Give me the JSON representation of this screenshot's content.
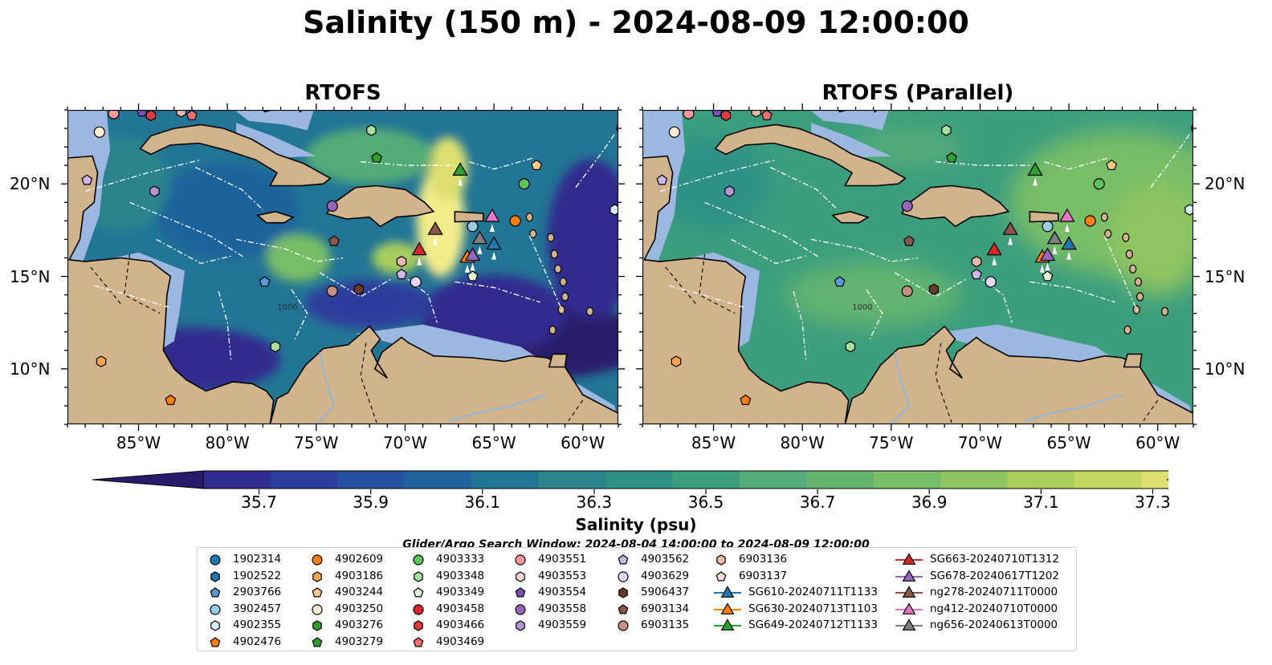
{
  "title": "Salinity (150 m) - 2024-08-09 12:00:00",
  "panels": [
    {
      "title": "RTOFS",
      "style": "detail"
    },
    {
      "title": "RTOFS (Parallel)",
      "style": "smooth"
    }
  ],
  "axes": {
    "lon_ticks": [
      "85°W",
      "80°W",
      "75°W",
      "70°W",
      "65°W",
      "60°W"
    ],
    "lat_ticks": [
      "20°N",
      "15°N",
      "10°N"
    ]
  },
  "colorbar": {
    "label": "Salinity (psu)",
    "min": 35.6,
    "max": 37.4,
    "ticks": [
      "35.7",
      "35.9",
      "36.1",
      "36.3",
      "36.5",
      "36.7",
      "36.9",
      "37.1",
      "37.3"
    ],
    "colors": [
      "#2a1a6b",
      "#302b8e",
      "#2e3d9c",
      "#26519f",
      "#1f649c",
      "#227595",
      "#2a838d",
      "#2f9185",
      "#3c9e7e",
      "#52ab78",
      "#64b470",
      "#78bd68",
      "#8fc561",
      "#a9cd5c",
      "#c3d65f",
      "#dde06e",
      "#f3ec8a"
    ]
  },
  "search_window": "Glider/Argo Search Window: 2024-08-04 14:00:00 to 2024-08-09 12:00:00",
  "legend": [
    {
      "label": "1902314",
      "marker": "circle",
      "color": "#1f77b4"
    },
    {
      "label": "1902522",
      "marker": "hexagon",
      "color": "#1f77b4"
    },
    {
      "label": "2903766",
      "marker": "pentagon",
      "color": "#5b9bd5"
    },
    {
      "label": "3902457",
      "marker": "circle",
      "color": "#9cc9e6"
    },
    {
      "label": "4902355",
      "marker": "hexagon",
      "color": "#d6effa"
    },
    {
      "label": "4902476",
      "marker": "pentagon",
      "color": "#ff7f0e"
    },
    {
      "label": "4902609",
      "marker": "circle",
      "color": "#ff7f0e"
    },
    {
      "label": "4903186",
      "marker": "hexagon",
      "color": "#ffa64d"
    },
    {
      "label": "4903244",
      "marker": "pentagon",
      "color": "#ffc98a"
    },
    {
      "label": "4903250",
      "marker": "circle",
      "color": "#fff0d6"
    },
    {
      "label": "4903276",
      "marker": "hexagon",
      "color": "#2ca02c"
    },
    {
      "label": "4903279",
      "marker": "pentagon",
      "color": "#2ca02c"
    },
    {
      "label": "4903333",
      "marker": "circle",
      "color": "#5fc25f"
    },
    {
      "label": "4903348",
      "marker": "hexagon",
      "color": "#a8e0a0"
    },
    {
      "label": "4903349",
      "marker": "pentagon",
      "color": "#e0f5d5"
    },
    {
      "label": "4903458",
      "marker": "circle",
      "color": "#d62728"
    },
    {
      "label": "4903466",
      "marker": "hexagon",
      "color": "#e03a3a"
    },
    {
      "label": "4903469",
      "marker": "pentagon",
      "color": "#ef7070"
    },
    {
      "label": "4903551",
      "marker": "circle",
      "color": "#ff9a9a"
    },
    {
      "label": "4903553",
      "marker": "hexagon",
      "color": "#ffd6d6"
    },
    {
      "label": "4903554",
      "marker": "pentagon",
      "color": "#7b4fbd"
    },
    {
      "label": "4903558",
      "marker": "circle",
      "color": "#9467bd"
    },
    {
      "label": "4903559",
      "marker": "hexagon",
      "color": "#b394d6"
    },
    {
      "label": "4903562",
      "marker": "pentagon",
      "color": "#cdb8e8"
    },
    {
      "label": "4903629",
      "marker": "circle",
      "color": "#e5d5f5"
    },
    {
      "label": "5906437",
      "marker": "hexagon",
      "color": "#6b3a2a"
    },
    {
      "label": "6903134",
      "marker": "pentagon",
      "color": "#8c564b"
    },
    {
      "label": "6903135",
      "marker": "circle",
      "color": "#c49080"
    },
    {
      "label": "6903136",
      "marker": "hexagon",
      "color": "#e8b8a8"
    },
    {
      "label": "6903137",
      "marker": "pentagon",
      "color": "#fbe0d6"
    },
    {
      "label": "SG610-20240711T1133",
      "marker": "triangle",
      "color": "#1f77b4"
    },
    {
      "label": "SG630-20240713T1103",
      "marker": "triangle",
      "color": "#ff7f0e"
    },
    {
      "label": "SG649-20240712T1133",
      "marker": "triangle",
      "color": "#2ca02c"
    },
    {
      "label": "SG663-20240710T1312",
      "marker": "triangle",
      "color": "#d62728"
    },
    {
      "label": "SG678-20240617T1202",
      "marker": "triangle",
      "color": "#9467bd"
    },
    {
      "label": "ng278-20240711T0000",
      "marker": "triangle",
      "color": "#8c564b"
    },
    {
      "label": "ng412-20240710T0000",
      "marker": "triangle",
      "color": "#e377c2"
    },
    {
      "label": "ng656-20240613T0000",
      "marker": "triangle",
      "color": "#7f7f7f"
    }
  ],
  "map_markers": [
    {
      "id": "4903551",
      "lon": -86.4,
      "lat": 23.8
    },
    {
      "id": "4903250",
      "lon": -87.2,
      "lat": 22.8
    },
    {
      "id": "4903554",
      "lon": -84.8,
      "lat": 23.9
    },
    {
      "id": "4903466",
      "lon": -84.3,
      "lat": 23.7
    },
    {
      "id": "6903136",
      "lon": -82.6,
      "lat": 23.9
    },
    {
      "id": "4903469",
      "lon": -82.0,
      "lat": 23.7
    },
    {
      "id": "4903562",
      "lon": -87.9,
      "lat": 20.2
    },
    {
      "id": "4903559",
      "lon": -84.1,
      "lat": 19.6
    },
    {
      "id": "4903348",
      "lon": -71.9,
      "lat": 22.9
    },
    {
      "id": "4903279",
      "lon": -71.6,
      "lat": 21.4
    },
    {
      "id": "4903558",
      "lon": -74.1,
      "lat": 18.8
    },
    {
      "id": "6903134",
      "lon": -74.0,
      "lat": 16.9
    },
    {
      "id": "6903135",
      "lon": -74.1,
      "lat": 14.2
    },
    {
      "id": "5906437",
      "lon": -72.6,
      "lat": 14.3
    },
    {
      "id": "2903766",
      "lon": -77.9,
      "lat": 14.7
    },
    {
      "id": "4903348",
      "lon": -77.3,
      "lat": 11.2
    },
    {
      "id": "6903136",
      "lon": -70.2,
      "lat": 15.8
    },
    {
      "id": "4903562",
      "lon": -70.2,
      "lat": 15.1
    },
    {
      "id": "4903629",
      "lon": -69.4,
      "lat": 14.7
    },
    {
      "id": "4903244",
      "lon": -62.6,
      "lat": 21.0
    },
    {
      "id": "4903333",
      "lon": -63.3,
      "lat": 20.0
    },
    {
      "id": "4902609",
      "lon": -63.8,
      "lat": 18.0
    },
    {
      "id": "3902457",
      "lon": -66.2,
      "lat": 17.7
    },
    {
      "id": "4903349",
      "lon": -66.2,
      "lat": 15.0
    },
    {
      "id": "4902355",
      "lon": -58.2,
      "lat": 18.6
    },
    {
      "id": "4903458",
      "lon": -57.7,
      "lat": 12.6
    },
    {
      "id": "4903458",
      "lon": -57.8,
      "lat": 23.0
    },
    {
      "id": "4903186",
      "lon": -87.1,
      "lat": 10.4
    },
    {
      "id": "4902476",
      "lon": -83.2,
      "lat": 8.3
    }
  ],
  "glider_markers": [
    {
      "id": "SG649-20240712T1133",
      "lon": -66.9,
      "lat": 20.6
    },
    {
      "id": "ng278-20240711T0000",
      "lon": -68.3,
      "lat": 17.4
    },
    {
      "id": "SG663-20240710T1312",
      "lon": -69.2,
      "lat": 16.3
    },
    {
      "id": "ng412-20240710T0000",
      "lon": -65.1,
      "lat": 18.1
    },
    {
      "id": "ng656-20240613T0000",
      "lon": -65.8,
      "lat": 16.9
    },
    {
      "id": "SG610-20240711T1133",
      "lon": -65.0,
      "lat": 16.6
    },
    {
      "id": "SG630-20240713T1103",
      "lon": -66.5,
      "lat": 15.9
    },
    {
      "id": "SG678-20240617T1202",
      "lon": -66.2,
      "lat": 16.0
    }
  ]
}
